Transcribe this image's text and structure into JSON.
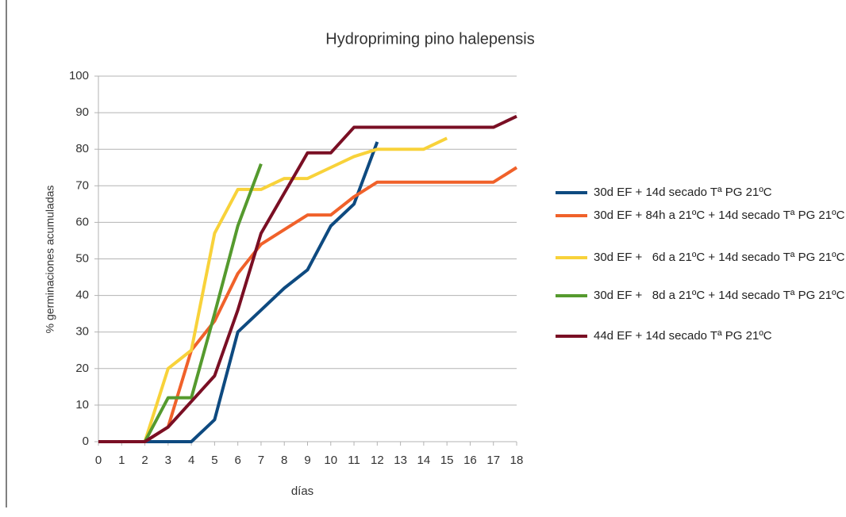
{
  "chart_data": {
    "type": "line",
    "title": "Hydropriming pino halepensis",
    "xlabel": "días",
    "ylabel": "% germinaciones acumuladas",
    "x": [
      0,
      1,
      2,
      3,
      4,
      5,
      6,
      7,
      8,
      9,
      10,
      11,
      12,
      13,
      14,
      15,
      16,
      17,
      18
    ],
    "xlim": [
      0,
      18
    ],
    "xticks": [
      0,
      1,
      2,
      3,
      4,
      5,
      6,
      7,
      8,
      9,
      10,
      11,
      12,
      13,
      14,
      15,
      16,
      17,
      18
    ],
    "ylim": [
      0,
      100
    ],
    "yticks": [
      0,
      10,
      20,
      30,
      40,
      50,
      60,
      70,
      80,
      90,
      100
    ],
    "grid": true,
    "legend": "right",
    "series": [
      {
        "name": "30d EF + 14d secado Tª PG 21ºC",
        "color": "#0e4a80",
        "values": [
          0,
          0,
          0,
          0,
          0,
          6,
          30,
          36,
          42,
          47,
          59,
          65,
          82,
          null,
          null,
          null,
          null,
          null,
          null
        ]
      },
      {
        "name": "30d EF + 84h a 21ºC + 14d secado Tª PG 21ºC",
        "color": "#f0612a",
        "values": [
          0,
          0,
          0,
          4,
          25,
          33,
          46,
          54,
          58,
          62,
          62,
          67,
          71,
          71,
          71,
          71,
          71,
          71,
          75
        ]
      },
      {
        "name": "30d EF +   6d a 21ºC + 14d secado Tª PG 21ºC",
        "color": "#f8d23a",
        "values": [
          0,
          0,
          0,
          20,
          25,
          57,
          69,
          69,
          72,
          72,
          75,
          78,
          80,
          80,
          80,
          83,
          null,
          null,
          null
        ]
      },
      {
        "name": "30d EF +   8d a 21ºC + 14d secado Tª PG 21ºC",
        "color": "#559a2e",
        "values": [
          0,
          0,
          0,
          12,
          12,
          35,
          59,
          76,
          null,
          null,
          null,
          null,
          null,
          null,
          null,
          null,
          null,
          null,
          null
        ]
      },
      {
        "name": "44d EF + 14d secado Tª PG 21ºC",
        "color": "#7a0f24",
        "values": [
          0,
          0,
          0,
          4,
          11,
          18,
          36,
          57,
          68,
          79,
          79,
          86,
          86,
          86,
          86,
          86,
          86,
          86,
          89
        ]
      }
    ]
  }
}
